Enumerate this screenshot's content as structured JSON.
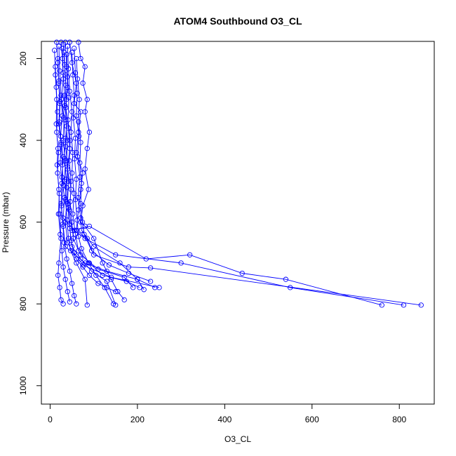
{
  "chart_data": {
    "type": "line",
    "title": "ATOM4 Southbound O3_CL",
    "xlabel": "O3_CL",
    "ylabel": "Pressure (mbar)",
    "xlim": [
      -20,
      880
    ],
    "ylim": [
      1045,
      158
    ],
    "y_reversed": true,
    "x_ticks": [
      0,
      200,
      400,
      600,
      800
    ],
    "y_ticks": [
      200,
      400,
      600,
      800,
      1000
    ],
    "series_color": "#0000ff",
    "marker": "open-circle",
    "grid": false,
    "series": [
      {
        "values": [
          [
            25,
            160
          ],
          [
            28,
            200
          ],
          [
            30,
            250
          ],
          [
            26,
            300
          ],
          [
            32,
            350
          ],
          [
            30,
            400
          ],
          [
            35,
            450
          ],
          [
            33,
            500
          ],
          [
            38,
            550
          ],
          [
            35,
            600
          ],
          [
            40,
            650
          ],
          [
            60,
            690
          ],
          [
            75,
            710
          ],
          [
            90,
            730
          ],
          [
            110,
            750
          ],
          [
            130,
            760
          ],
          [
            150,
            770
          ]
        ]
      },
      {
        "values": [
          [
            15,
            160
          ],
          [
            18,
            210
          ],
          [
            20,
            260
          ],
          [
            22,
            310
          ],
          [
            20,
            360
          ],
          [
            25,
            410
          ],
          [
            28,
            460
          ],
          [
            30,
            510
          ],
          [
            26,
            560
          ],
          [
            30,
            610
          ],
          [
            35,
            660
          ],
          [
            80,
            700
          ],
          [
            130,
            720
          ],
          [
            200,
            740
          ],
          [
            240,
            760
          ]
        ]
      },
      {
        "values": [
          [
            35,
            160
          ],
          [
            38,
            220
          ],
          [
            40,
            270
          ],
          [
            36,
            320
          ],
          [
            42,
            370
          ],
          [
            45,
            420
          ],
          [
            40,
            470
          ],
          [
            48,
            520
          ],
          [
            44,
            570
          ],
          [
            50,
            620
          ],
          [
            90,
            610
          ],
          [
            220,
            690
          ],
          [
            320,
            680
          ],
          [
            440,
            725
          ],
          [
            540,
            740
          ],
          [
            760,
            803
          ]
        ]
      },
      {
        "values": [
          [
            20,
            170
          ],
          [
            22,
            230
          ],
          [
            25,
            290
          ],
          [
            28,
            340
          ],
          [
            24,
            390
          ],
          [
            30,
            440
          ],
          [
            27,
            490
          ],
          [
            33,
            540
          ],
          [
            30,
            590
          ],
          [
            55,
            620
          ],
          [
            80,
            640
          ],
          [
            150,
            680
          ],
          [
            300,
            700
          ],
          [
            550,
            760
          ],
          [
            810,
            803
          ]
        ]
      },
      {
        "values": [
          [
            45,
            160
          ],
          [
            50,
            210
          ],
          [
            60,
            260
          ],
          [
            55,
            310
          ],
          [
            70,
            330
          ],
          [
            65,
            380
          ],
          [
            60,
            430
          ],
          [
            75,
            480
          ],
          [
            70,
            520
          ],
          [
            65,
            570
          ],
          [
            60,
            620
          ],
          [
            85,
            640
          ],
          [
            100,
            680
          ],
          [
            180,
            710
          ],
          [
            230,
            712
          ],
          [
            850,
            803
          ]
        ]
      },
      {
        "values": [
          [
            10,
            180
          ],
          [
            12,
            240
          ],
          [
            15,
            300
          ],
          [
            14,
            360
          ],
          [
            18,
            420
          ],
          [
            16,
            460
          ],
          [
            20,
            520
          ],
          [
            22,
            580
          ],
          [
            25,
            640
          ],
          [
            20,
            700
          ],
          [
            18,
            730
          ],
          [
            22,
            760
          ],
          [
            25,
            790
          ],
          [
            30,
            800
          ]
        ]
      },
      {
        "values": [
          [
            65,
            160
          ],
          [
            70,
            200
          ],
          [
            80,
            220
          ],
          [
            75,
            260
          ],
          [
            85,
            300
          ],
          [
            80,
            330
          ],
          [
            90,
            380
          ],
          [
            85,
            420
          ],
          [
            80,
            470
          ],
          [
            88,
            520
          ],
          [
            75,
            560
          ],
          [
            70,
            600
          ],
          [
            80,
            610
          ],
          [
            100,
            640
          ],
          [
            120,
            700
          ],
          [
            140,
            740
          ],
          [
            155,
            770
          ],
          [
            170,
            790
          ]
        ]
      },
      {
        "values": [
          [
            30,
            165
          ],
          [
            33,
            215
          ],
          [
            36,
            265
          ],
          [
            34,
            315
          ],
          [
            38,
            365
          ],
          [
            36,
            415
          ],
          [
            40,
            465
          ],
          [
            38,
            515
          ],
          [
            42,
            565
          ],
          [
            45,
            615
          ],
          [
            50,
            660
          ],
          [
            70,
            690
          ],
          [
            95,
            720
          ],
          [
            130,
            745
          ],
          [
            150,
            803
          ]
        ]
      },
      {
        "values": [
          [
            40,
            170
          ],
          [
            42,
            225
          ],
          [
            45,
            280
          ],
          [
            50,
            330
          ],
          [
            48,
            380
          ],
          [
            52,
            430
          ],
          [
            50,
            480
          ],
          [
            55,
            530
          ],
          [
            52,
            580
          ],
          [
            58,
            630
          ],
          [
            65,
            670
          ],
          [
            90,
            700
          ],
          [
            120,
            730
          ],
          [
            175,
            745
          ],
          [
            205,
            760
          ]
        ]
      },
      {
        "values": [
          [
            28,
            175
          ],
          [
            30,
            235
          ],
          [
            33,
            290
          ],
          [
            31,
            345
          ],
          [
            35,
            395
          ],
          [
            33,
            445
          ],
          [
            37,
            495
          ],
          [
            35,
            545
          ],
          [
            39,
            595
          ],
          [
            42,
            640
          ],
          [
            47,
            670
          ],
          [
            60,
            700
          ],
          [
            80,
            740
          ],
          [
            85,
            803
          ]
        ]
      },
      {
        "values": [
          [
            55,
            175
          ],
          [
            58,
            235
          ],
          [
            62,
            285
          ],
          [
            60,
            340
          ],
          [
            66,
            390
          ],
          [
            63,
            440
          ],
          [
            68,
            490
          ],
          [
            64,
            540
          ],
          [
            70,
            590
          ],
          [
            72,
            620
          ],
          [
            100,
            660
          ],
          [
            160,
            700
          ],
          [
            200,
            740
          ],
          [
            215,
            765
          ]
        ]
      },
      {
        "values": [
          [
            18,
            200
          ],
          [
            20,
            255
          ],
          [
            23,
            305
          ],
          [
            21,
            355
          ],
          [
            25,
            405
          ],
          [
            23,
            455
          ],
          [
            27,
            505
          ],
          [
            25,
            555
          ],
          [
            29,
            605
          ],
          [
            32,
            650
          ],
          [
            38,
            690
          ],
          [
            45,
            720
          ],
          [
            50,
            750
          ],
          [
            55,
            780
          ],
          [
            60,
            800
          ]
        ]
      },
      {
        "values": [
          [
            38,
            190
          ],
          [
            40,
            245
          ],
          [
            43,
            295
          ],
          [
            41,
            350
          ],
          [
            46,
            400
          ],
          [
            44,
            450
          ],
          [
            48,
            500
          ],
          [
            46,
            550
          ],
          [
            50,
            600
          ],
          [
            53,
            640
          ],
          [
            70,
            680
          ],
          [
            110,
            715
          ],
          [
            170,
            735
          ],
          [
            190,
            760
          ]
        ]
      },
      {
        "values": [
          [
            50,
            185
          ],
          [
            52,
            240
          ],
          [
            55,
            290
          ],
          [
            53,
            345
          ],
          [
            58,
            395
          ],
          [
            56,
            445
          ],
          [
            60,
            495
          ],
          [
            58,
            545
          ],
          [
            62,
            595
          ],
          [
            65,
            635
          ],
          [
            72,
            665
          ],
          [
            88,
            700
          ],
          [
            105,
            730
          ],
          [
            125,
            760
          ],
          [
            145,
            800
          ]
        ]
      },
      {
        "values": [
          [
            32,
            185
          ],
          [
            35,
            240
          ],
          [
            37,
            300
          ],
          [
            36,
            350
          ],
          [
            40,
            400
          ],
          [
            38,
            450
          ],
          [
            42,
            500
          ],
          [
            40,
            555
          ],
          [
            44,
            605
          ],
          [
            48,
            645
          ],
          [
            55,
            675
          ],
          [
            75,
            705
          ],
          [
            140,
            735
          ],
          [
            250,
            760
          ]
        ]
      },
      {
        "values": [
          [
            12,
            220
          ],
          [
            14,
            270
          ],
          [
            17,
            330
          ],
          [
            15,
            380
          ],
          [
            19,
            430
          ],
          [
            17,
            480
          ],
          [
            21,
            530
          ],
          [
            19,
            580
          ],
          [
            23,
            630
          ],
          [
            27,
            670
          ],
          [
            30,
            710
          ],
          [
            35,
            740
          ],
          [
            40,
            770
          ],
          [
            45,
            795
          ]
        ]
      },
      {
        "values": [
          [
            60,
            200
          ],
          [
            63,
            250
          ],
          [
            67,
            300
          ],
          [
            65,
            355
          ],
          [
            70,
            405
          ],
          [
            68,
            455
          ],
          [
            72,
            505
          ],
          [
            70,
            555
          ],
          [
            74,
            600
          ],
          [
            78,
            630
          ],
          [
            95,
            670
          ],
          [
            135,
            705
          ],
          [
            180,
            725
          ],
          [
            230,
            745
          ]
        ]
      }
    ]
  }
}
